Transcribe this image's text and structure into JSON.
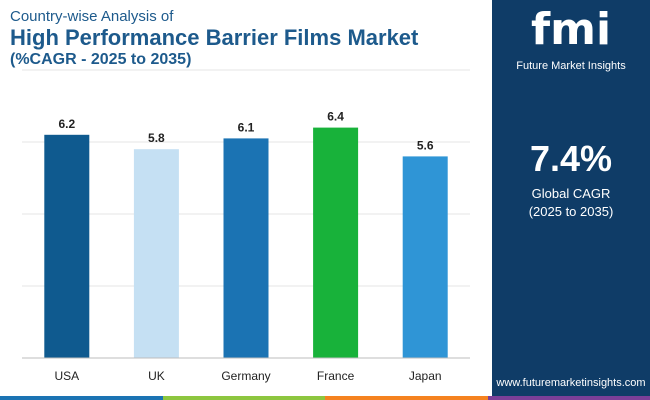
{
  "header": {
    "kicker": "Country-wise Analysis of",
    "title": "High Performance Barrier Films Market",
    "subtitle": "(%CAGR - 2025 to 2035)"
  },
  "side_panel": {
    "logo_text": "fmi",
    "logo_subtitle": "Future Market Insights",
    "cagr_value": "7.4%",
    "cagr_label": "Global CAGR",
    "cagr_period": "(2025 to 2035)",
    "website": "www.futuremarketinsights.com",
    "background_color": "#0f3c67"
  },
  "chart_data": {
    "type": "bar",
    "categories": [
      "USA",
      "UK",
      "Germany",
      "France",
      "Japan"
    ],
    "values": [
      6.2,
      5.8,
      6.1,
      6.4,
      5.6
    ],
    "colors": [
      "#0f5a8f",
      "#c5e0f3",
      "#1b73b3",
      "#18b23a",
      "#2f95d6"
    ],
    "ylim": [
      0,
      8
    ],
    "grid": true
  },
  "strip_colors": [
    "#1b73b3",
    "#8dc63f",
    "#f58220",
    "#7b3f98"
  ]
}
